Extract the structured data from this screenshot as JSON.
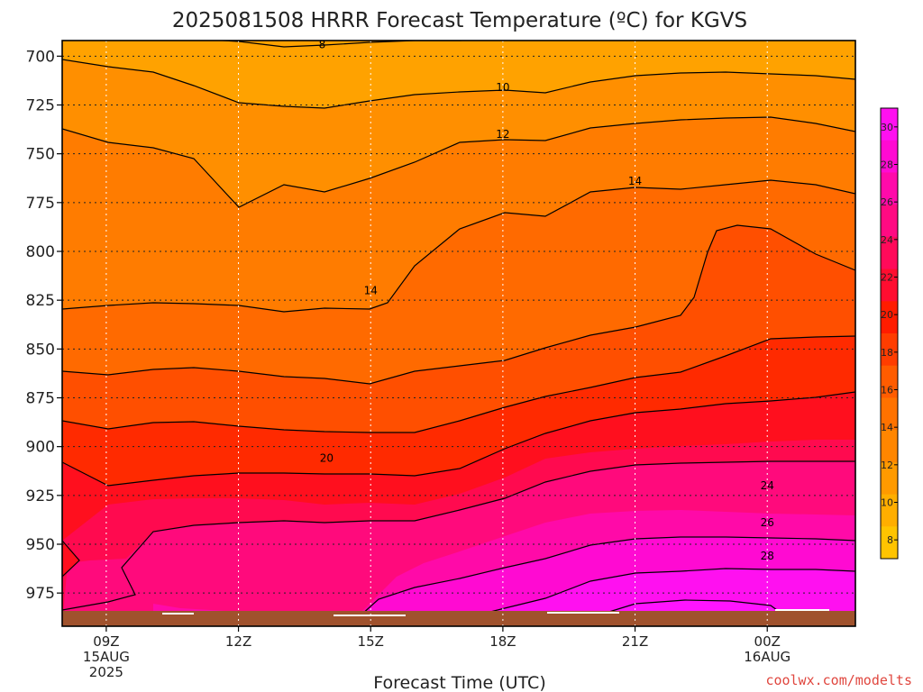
{
  "chart_data": {
    "type": "contour",
    "title": "2025081508 HRRR Forecast Temperature (ºC) for KGVS",
    "xlabel": "Forecast Time (UTC)",
    "ylabel": "",
    "x_ticks": [
      {
        "hour": 9,
        "lines": [
          "09Z",
          "15AUG",
          "2025"
        ]
      },
      {
        "hour": 12,
        "lines": [
          "12Z"
        ]
      },
      {
        "hour": 15,
        "lines": [
          "15Z"
        ]
      },
      {
        "hour": 18,
        "lines": [
          "18Z"
        ]
      },
      {
        "hour": 21,
        "lines": [
          "21Z"
        ]
      },
      {
        "hour": 24,
        "lines": [
          "00Z",
          "16AUG"
        ]
      }
    ],
    "xlim_hours": [
      8,
      26
    ],
    "y_ticks": [
      700,
      725,
      750,
      775,
      800,
      825,
      850,
      875,
      900,
      925,
      950,
      975
    ],
    "ylim_hpa": [
      692,
      992
    ],
    "colorbar": {
      "ticks": [
        8,
        10,
        12,
        14,
        16,
        18,
        20,
        22,
        24,
        26,
        28,
        30
      ],
      "range": [
        7,
        31
      ],
      "colors": [
        "#ffc400",
        "#ffae00",
        "#ff9a00",
        "#ff8600",
        "#ff7200",
        "#ff5c00",
        "#ff3d00",
        "#ff1c00",
        "#ff0d30",
        "#ff0a5a",
        "#ff0a82",
        "#ff0aaa",
        "#ff0ad2",
        "#ff10f0"
      ]
    },
    "contour_labels": [
      {
        "value": "8",
        "hour": 13.9,
        "hpa": 694
      },
      {
        "value": "10",
        "hour": 18.0,
        "hpa": 716
      },
      {
        "value": "12",
        "hour": 18.0,
        "hpa": 740
      },
      {
        "value": "14",
        "hour": 21.0,
        "hpa": 764
      },
      {
        "value": "14",
        "hour": 15.0,
        "hpa": 820
      },
      {
        "value": "20",
        "hour": 14.0,
        "hpa": 906
      },
      {
        "value": "24",
        "hour": 24.0,
        "hpa": 920
      },
      {
        "value": "26",
        "hour": 24.0,
        "hpa": 939
      },
      {
        "value": "28",
        "hour": 24.0,
        "hpa": 956
      }
    ],
    "surface_hpa_approx": 981,
    "grid": true,
    "watermark": "coolwx.com/modelts"
  }
}
